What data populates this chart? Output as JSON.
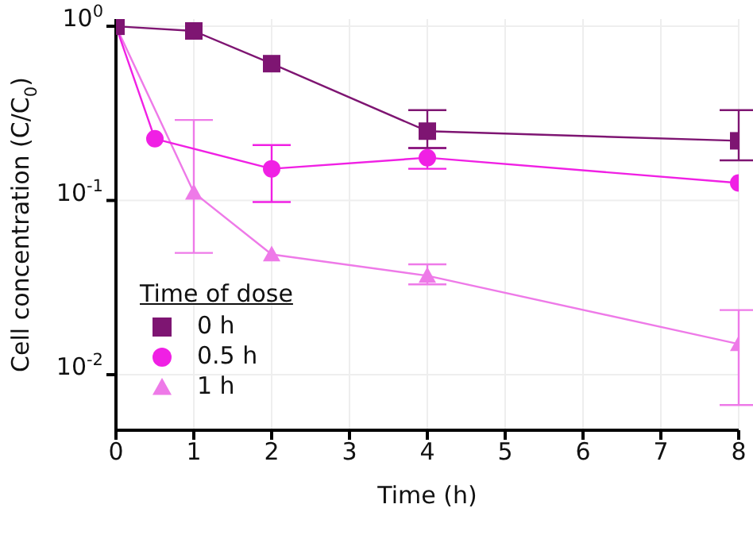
{
  "chart_data": {
    "type": "line",
    "xlabel": "Time (h)",
    "ylabel": "Cell concentration (C/C$_{0}$)",
    "legend_title": "Time of dose",
    "log": "y",
    "grid": true,
    "legend": "bottom left",
    "xlim": [
      0,
      8
    ],
    "xticks": [
      0,
      1,
      2,
      3,
      4,
      5,
      6,
      7,
      8
    ],
    "ylim": [
      0.0048,
      1.1
    ],
    "yticks": [
      {
        "value": 1,
        "label": "10$^{0}$"
      },
      {
        "value": 0.1,
        "label": "10$^{-1}$"
      },
      {
        "value": 0.01,
        "label": "10$^{-2}$"
      }
    ],
    "series": [
      {
        "name": "0 h",
        "color": "#7e1572",
        "marker": "square",
        "x": [
          0,
          1,
          2,
          4,
          8
        ],
        "values": [
          1,
          0.94,
          0.61,
          0.25,
          0.22
        ],
        "errors": [
          null,
          null,
          null,
          [
            0.2,
            0.33
          ],
          [
            0.17,
            0.33
          ]
        ]
      },
      {
        "name": "0.5 h",
        "color": "#f020e4",
        "marker": "circle",
        "x": [
          0,
          0.5,
          2,
          4,
          8
        ],
        "values": [
          1,
          0.226,
          0.152,
          0.176,
          0.126
        ],
        "errors": [
          null,
          null,
          [
            0.098,
            0.208
          ],
          [
            0.152,
            0.2
          ],
          null
        ]
      },
      {
        "name": "1 h",
        "color": "#ee7ae8",
        "marker": "triangle",
        "x": [
          0,
          1,
          2,
          4,
          8
        ],
        "values": [
          1,
          0.111,
          0.049,
          0.037,
          0.015
        ],
        "errors": [
          null,
          [
            0.05,
            0.29
          ],
          null,
          [
            0.033,
            0.043
          ],
          [
            0.0067,
            0.0235
          ]
        ]
      }
    ]
  }
}
